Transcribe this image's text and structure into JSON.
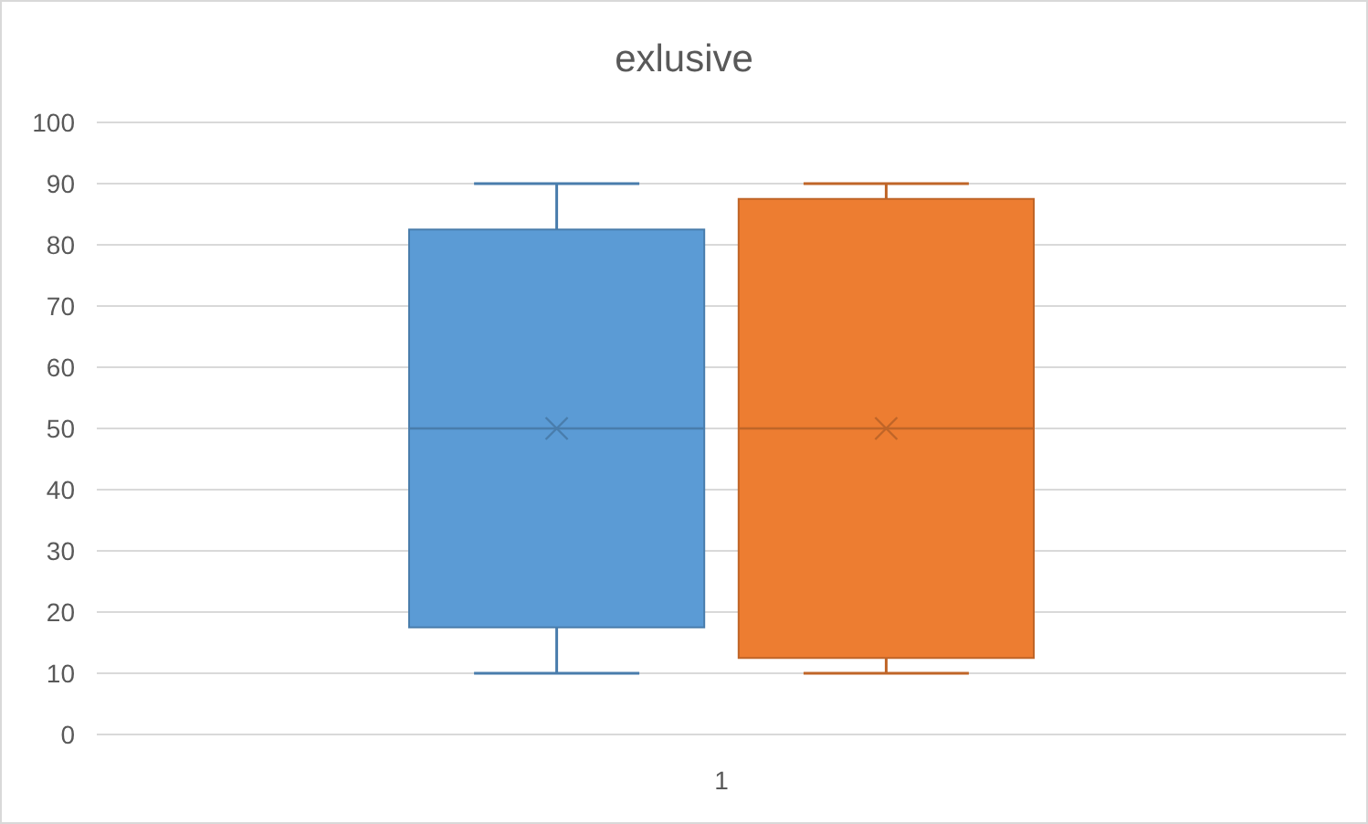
{
  "chart_data": {
    "type": "box",
    "title": "exlusive",
    "categories": [
      "1"
    ],
    "series": [
      {
        "color": "#5b9bd5",
        "boxes": [
          {
            "low": 10,
            "q1": 17.5,
            "median": 50,
            "q3": 82.5,
            "high": 90,
            "mean": 50
          }
        ]
      },
      {
        "color": "#ed7d31",
        "boxes": [
          {
            "low": 10,
            "q1": 12.5,
            "median": 50,
            "q3": 87.5,
            "high": 90,
            "mean": 50
          }
        ]
      }
    ],
    "ylim": [
      0,
      100
    ],
    "yticks": [
      0,
      10,
      20,
      30,
      40,
      50,
      60,
      70,
      80,
      90,
      100
    ],
    "grid": "y"
  }
}
